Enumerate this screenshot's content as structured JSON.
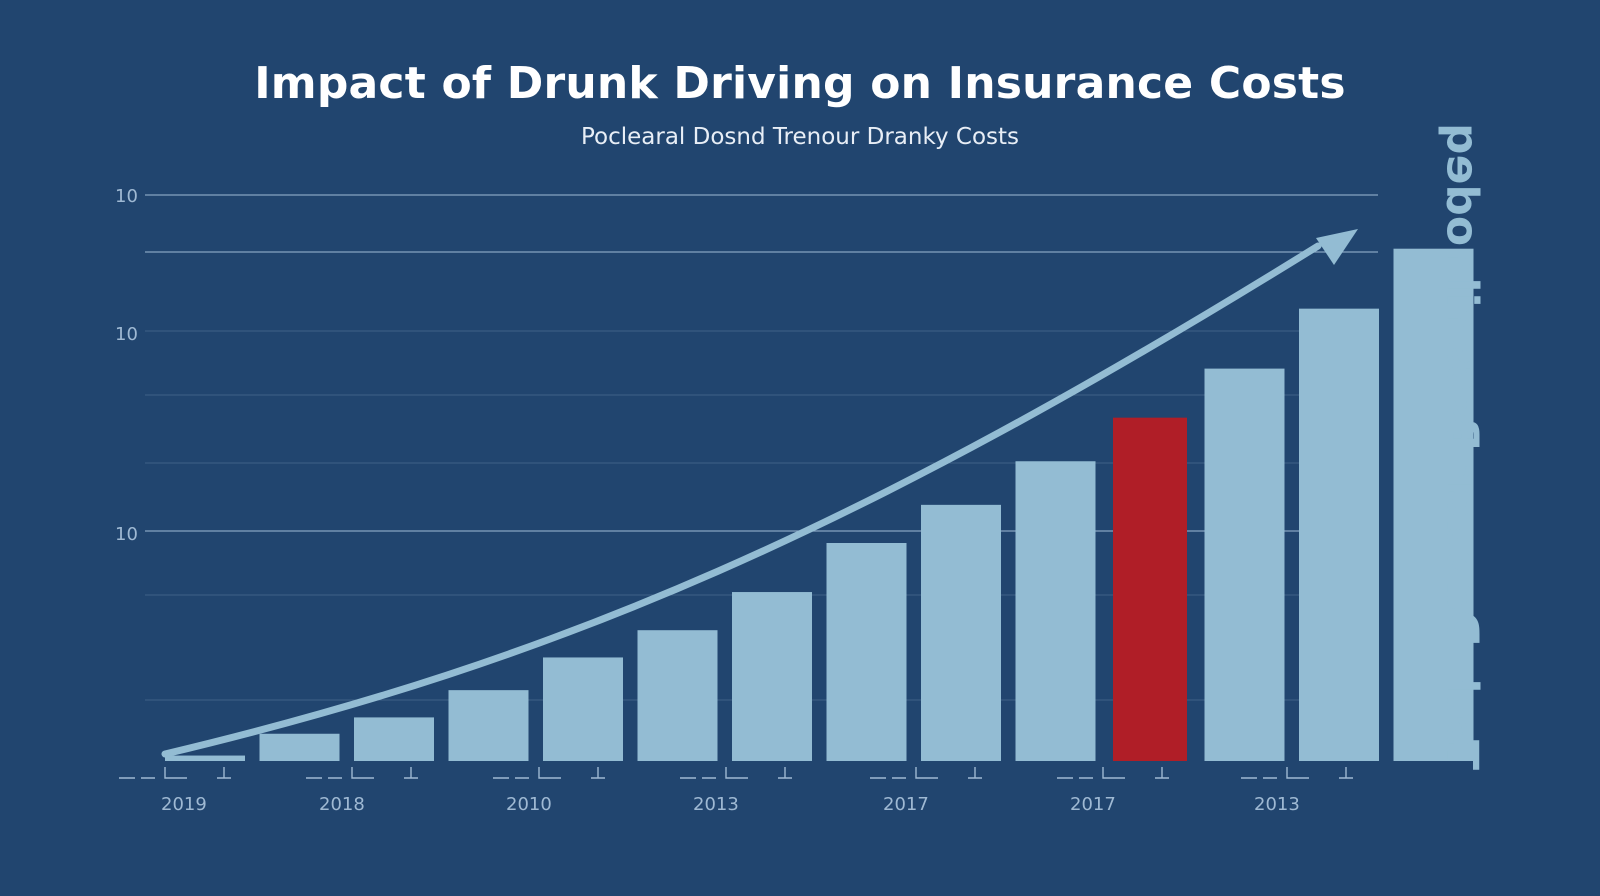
{
  "chart_data": {
    "type": "bar",
    "title": "Impact of Drunk Driving on Insurance Costs",
    "subtitle": "Poclearal Dosnd Trenour Dranky Costs",
    "side_label": "Tsch Dapuer Bsssnilnodeq",
    "xlabel": "",
    "ylabel": "",
    "y_tick_labels": [
      "10",
      "10",
      "10"
    ],
    "x_tick_labels": [
      "2019",
      "2018",
      "2010",
      "2013",
      "2017",
      "2017",
      "2013"
    ],
    "values": [
      1,
      5,
      8,
      13,
      19,
      24,
      31,
      40,
      47,
      55,
      63,
      72,
      83,
      94
    ],
    "highlight_index": 10,
    "ylim": [
      0,
      100
    ],
    "trend_arrow": true,
    "colors": {
      "background": "#21456f",
      "bar": "#93bcd3",
      "highlight": "#b01e27",
      "grid": "#a9c3dd",
      "tick_text": "#9fb9d3",
      "arrow": "#93bcd3"
    }
  }
}
